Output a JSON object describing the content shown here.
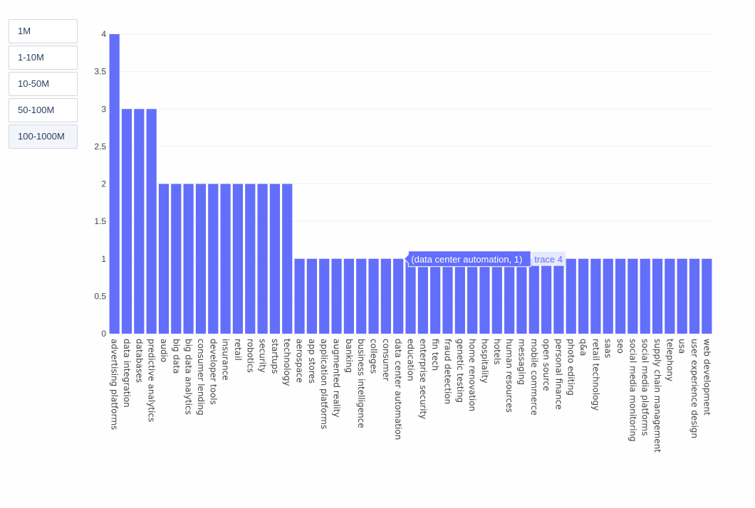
{
  "range_buttons": [
    {
      "label": "1M",
      "active": false
    },
    {
      "label": "1-10M",
      "active": false
    },
    {
      "label": "10-50M",
      "active": false
    },
    {
      "label": "50-100M",
      "active": false
    },
    {
      "label": "100-1000M",
      "active": true
    }
  ],
  "colors": {
    "bar": "#636efa",
    "grid": "#eef0f5",
    "axis_text": "#444444"
  },
  "tooltip": {
    "text": "(data center automation, 1)",
    "trace": "trace 4",
    "category": "data center automation"
  },
  "chart_data": {
    "type": "bar",
    "ylim": [
      0,
      4
    ],
    "yticks": [
      0,
      0.5,
      1,
      1.5,
      2,
      2.5,
      3,
      3.5,
      4
    ],
    "ytick_labels": [
      "0",
      "0.5",
      "1",
      "1.5",
      "2",
      "2.5",
      "3",
      "3.5",
      "4"
    ],
    "grid": true,
    "categories": [
      "advertising platforms",
      "data integration",
      "databases",
      "predictive analytics",
      "audio",
      "big data",
      "big data analytics",
      "consumer lending",
      "developer tools",
      "insurance",
      "retail",
      "robotics",
      "security",
      "startups",
      "technology",
      "aerospace",
      "app stores",
      "application platforms",
      "augmented reality",
      "banking",
      "business intelligence",
      "colleges",
      "consumer",
      "data center automation",
      "education",
      "enterprise security",
      "fin tech",
      "fraud detection",
      "genetic testing",
      "home renovation",
      "hospitality",
      "hotels",
      "human resources",
      "messaging",
      "mobile commerce",
      "open source",
      "personal finance",
      "photo editing",
      "q&a",
      "retail technology",
      "saas",
      "seo",
      "social media monitoring",
      "social media platforms",
      "supply chain management",
      "telephony",
      "usa",
      "user experience design",
      "web development"
    ],
    "values": [
      4,
      3,
      3,
      3,
      2,
      2,
      2,
      2,
      2,
      2,
      2,
      2,
      2,
      2,
      2,
      1,
      1,
      1,
      1,
      1,
      1,
      1,
      1,
      1,
      1,
      1,
      1,
      1,
      1,
      1,
      1,
      1,
      1,
      1,
      1,
      1,
      1,
      1,
      1,
      1,
      1,
      1,
      1,
      1,
      1,
      1,
      1,
      1,
      1
    ]
  }
}
